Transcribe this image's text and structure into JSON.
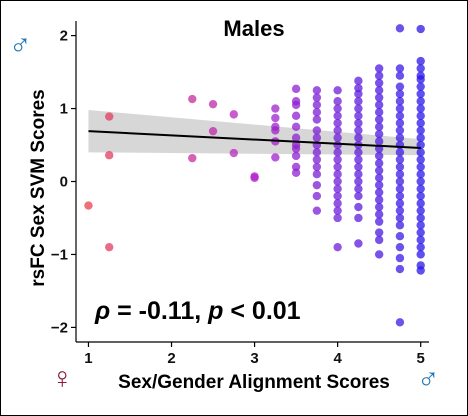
{
  "chart_data": {
    "type": "scatter",
    "title": "Males",
    "xlabel": "Sex/Gender Alignment Scores",
    "ylabel": "rsFC Sex SVM Scores",
    "xlim": [
      0.85,
      5.1
    ],
    "ylim": [
      -2.2,
      2.2
    ],
    "xticks": [
      "1",
      "2",
      "3",
      "4",
      "5"
    ],
    "yticks": [
      "2",
      "1",
      "0",
      "−1",
      "−2"
    ],
    "xtick_values": [
      1,
      2,
      3,
      4,
      5
    ],
    "ytick_values": [
      2,
      1,
      0,
      -1,
      -2
    ],
    "grid": false,
    "annotation": {
      "rho_symbol": "ρ",
      "rho_text": " = -0.11, ",
      "p_symbol": "p",
      "p_text": " < 0.01"
    },
    "symbols": {
      "male": "♂",
      "female": "♀",
      "male_color": "#1f77b4",
      "female_color": "#8b1a3a"
    },
    "color_scale": {
      "low": "#e8404f",
      "mid": "#b023c8",
      "high": "#2b16e8"
    },
    "regression": {
      "x": [
        1,
        5
      ],
      "y": [
        0.69,
        0.46
      ],
      "ci_upper": [
        0.98,
        0.58
      ],
      "ci_lower": [
        0.4,
        0.36
      ],
      "line_color": "#000000",
      "band_color": "#d0d0d0"
    },
    "series": [
      {
        "x": 1.0,
        "y": [
          -0.33
        ]
      },
      {
        "x": 1.25,
        "y": [
          0.89,
          0.36,
          -0.9
        ]
      },
      {
        "x": 2.25,
        "y": [
          1.13,
          0.32
        ]
      },
      {
        "x": 2.5,
        "y": [
          1.06,
          0.69
        ]
      },
      {
        "x": 2.75,
        "y": [
          0.92,
          0.39
        ]
      },
      {
        "x": 3.0,
        "y": [
          0.07,
          0.05
        ]
      },
      {
        "x": 3.25,
        "y": [
          1.0,
          0.87,
          0.75,
          0.7,
          0.55,
          0.33
        ]
      },
      {
        "x": 3.5,
        "y": [
          1.27,
          1.1,
          1.05,
          0.9,
          0.75,
          0.6,
          0.5,
          0.45,
          0.35,
          0.2,
          0.12
        ]
      },
      {
        "x": 3.75,
        "y": [
          1.25,
          1.15,
          1.05,
          0.95,
          0.85,
          0.7,
          0.6,
          0.5,
          0.4,
          0.3,
          0.2,
          0.1,
          -0.05,
          -0.2,
          -0.4
        ]
      },
      {
        "x": 4.0,
        "y": [
          1.25,
          1.1,
          1.0,
          0.9,
          0.8,
          0.7,
          0.6,
          0.5,
          0.4,
          0.3,
          0.2,
          0.1,
          0.0,
          -0.1,
          -0.2,
          -0.3,
          -0.4,
          -0.5,
          -0.9
        ]
      },
      {
        "x": 4.25,
        "y": [
          1.38,
          1.28,
          1.2,
          1.1,
          1.0,
          0.9,
          0.8,
          0.7,
          0.6,
          0.5,
          0.4,
          0.3,
          0.2,
          0.1,
          0.0,
          -0.1,
          -0.2,
          -0.35,
          -0.5,
          -0.85
        ]
      },
      {
        "x": 4.5,
        "y": [
          1.55,
          1.45,
          1.35,
          1.25,
          1.15,
          1.05,
          0.95,
          0.85,
          0.75,
          0.65,
          0.55,
          0.45,
          0.35,
          0.25,
          0.15,
          0.05,
          -0.05,
          -0.15,
          -0.25,
          -0.35,
          -0.45,
          -0.55,
          -0.7,
          -0.8,
          -1.0
        ]
      },
      {
        "x": 4.75,
        "y": [
          2.1,
          1.55,
          1.45,
          1.3,
          1.2,
          1.1,
          1.0,
          0.9,
          0.8,
          0.7,
          0.6,
          0.5,
          0.4,
          0.3,
          0.2,
          0.1,
          0.0,
          -0.1,
          -0.2,
          -0.3,
          -0.4,
          -0.5,
          -0.6,
          -0.75,
          -0.9,
          -1.05,
          -1.2,
          -1.93
        ]
      },
      {
        "x": 5.0,
        "y": [
          2.09,
          1.65,
          1.55,
          1.45,
          1.4,
          1.3,
          1.2,
          1.1,
          1.0,
          0.9,
          0.8,
          0.7,
          0.6,
          0.5,
          0.4,
          0.3,
          0.2,
          0.1,
          0.0,
          -0.1,
          -0.2,
          -0.3,
          -0.4,
          -0.5,
          -0.6,
          -0.7,
          -0.8,
          -0.9,
          -1.0,
          -1.15,
          -1.22
        ]
      }
    ]
  }
}
